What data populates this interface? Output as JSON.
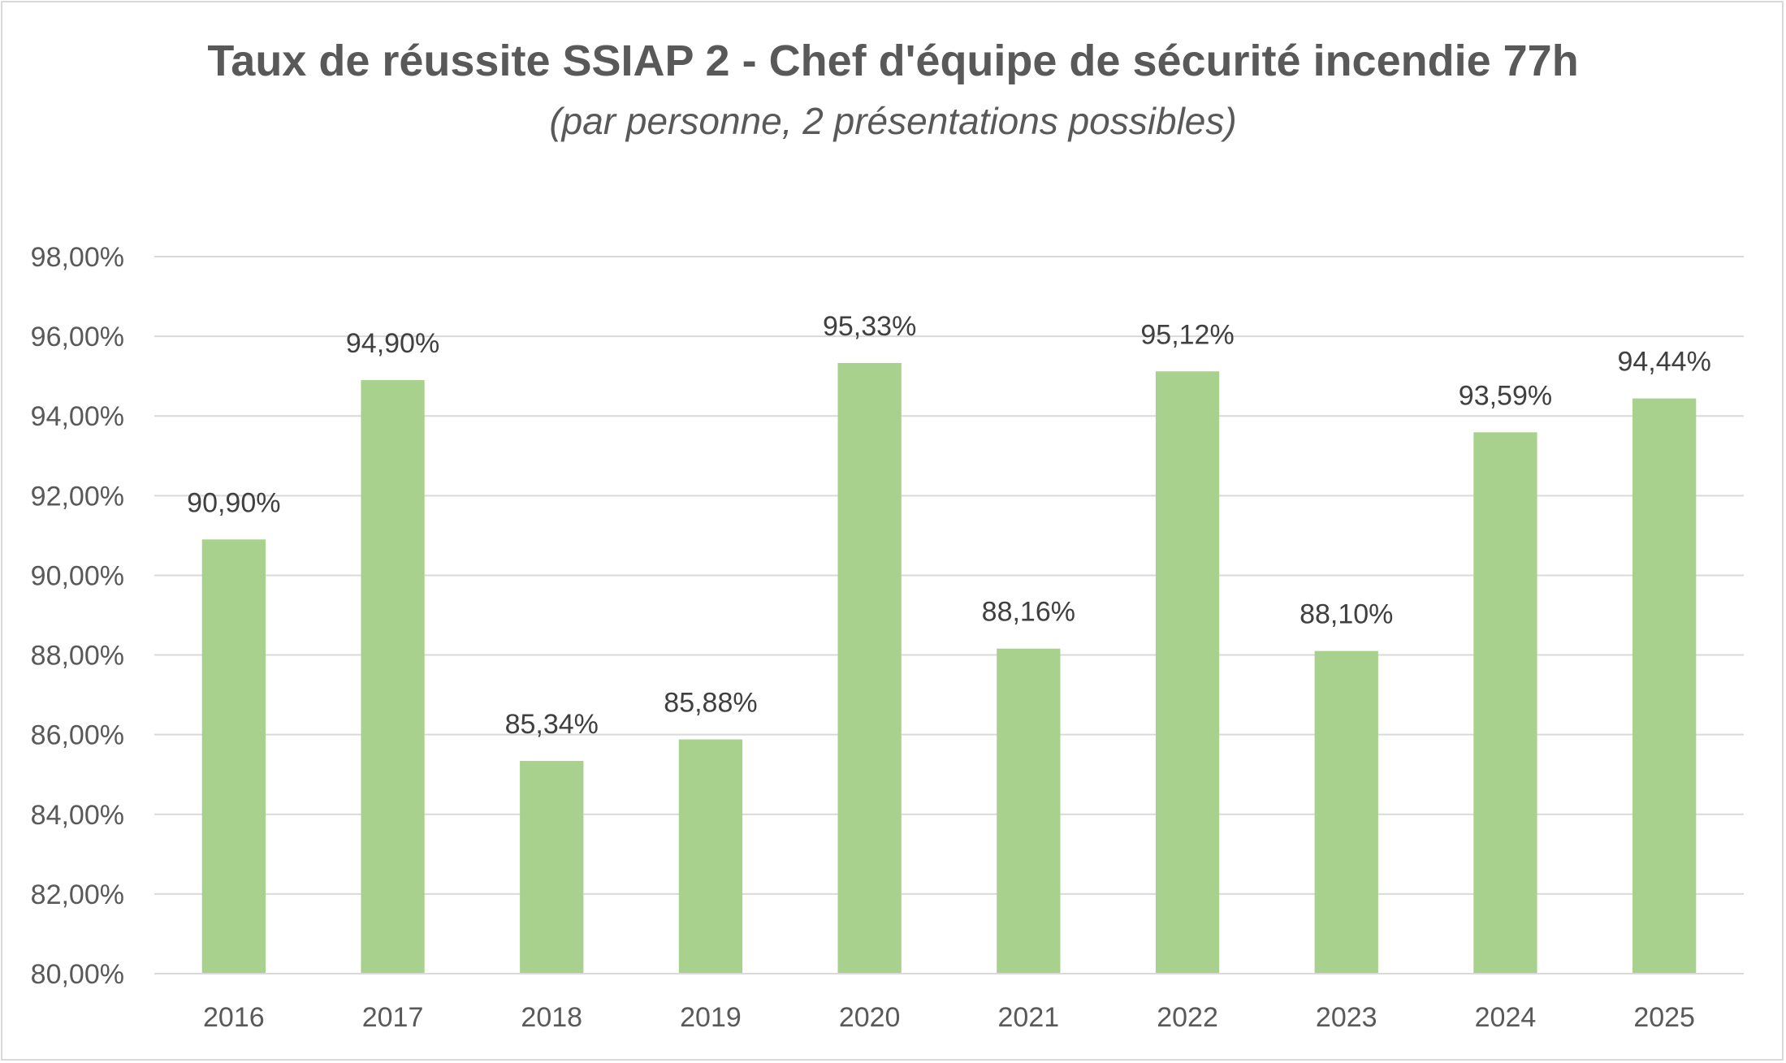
{
  "chart_data": {
    "type": "bar",
    "title": "Taux de réussite SSIAP 2 - Chef d'équipe de sécurité incendie 77h",
    "subtitle": "(par personne, 2 présentations possibles)",
    "xlabel": "",
    "ylabel": "",
    "categories": [
      "2016",
      "2017",
      "2018",
      "2019",
      "2020",
      "2021",
      "2022",
      "2023",
      "2024",
      "2025"
    ],
    "values": [
      90.9,
      94.9,
      85.34,
      85.88,
      95.33,
      88.16,
      95.12,
      88.1,
      93.59,
      94.44
    ],
    "data_labels": [
      "90,90%",
      "94,90%",
      "85,34%",
      "85,88%",
      "95,33%",
      "88,16%",
      "95,12%",
      "88,10%",
      "93,59%",
      "94,44%"
    ],
    "ylim": [
      80,
      98
    ],
    "yticks": [
      80,
      82,
      84,
      86,
      88,
      90,
      92,
      94,
      96,
      98
    ],
    "ytick_labels": [
      "80,00%",
      "82,00%",
      "84,00%",
      "86,00%",
      "88,00%",
      "90,00%",
      "92,00%",
      "94,00%",
      "96,00%",
      "98,00%"
    ],
    "grid": true,
    "legend": "none",
    "colors": {
      "bar": "#a9d18e",
      "grid": "#d9d9d9",
      "text": "#595959"
    }
  }
}
